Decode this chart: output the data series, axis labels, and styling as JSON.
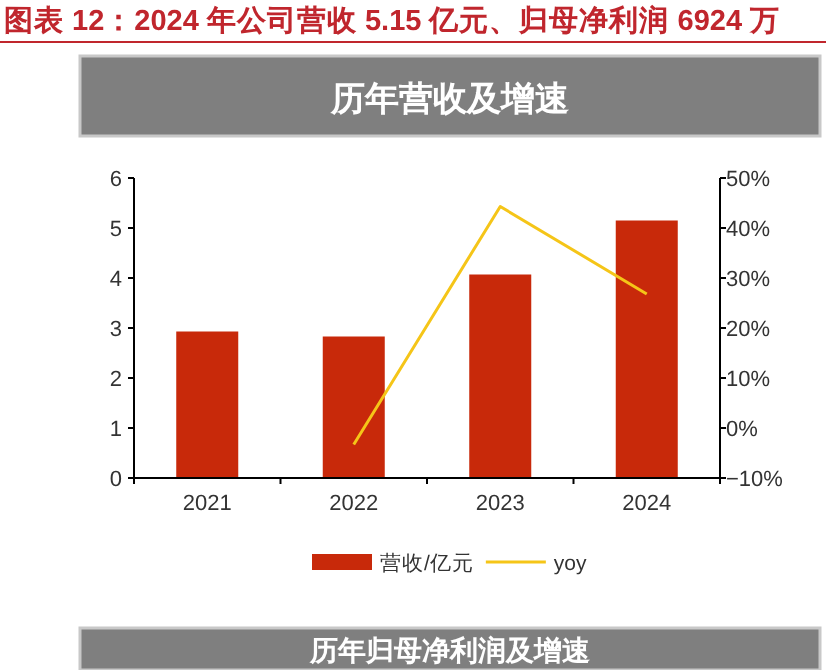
{
  "chart_data": {
    "type": "bar",
    "title": "图表 12：2024 年公司营收 5.15 亿元、归母净利润 6924 万",
    "subtitle": "历年营收及增速",
    "categories": [
      "2021",
      "2022",
      "2023",
      "2024"
    ],
    "series": [
      {
        "name": "营收/亿元",
        "color": "#c8290a",
        "values": [
          2.93,
          2.83,
          4.07,
          5.15
        ]
      },
      {
        "name": "yoy",
        "type": "line",
        "axis": "y2",
        "color": "#f5c518",
        "values": [
          null,
          -3.3,
          44.3,
          26.8
        ]
      }
    ],
    "ylim": [
      0,
      6
    ],
    "yticks": [
      0,
      1,
      2,
      3,
      4,
      5,
      6
    ],
    "y2lim": [
      -10,
      50
    ],
    "y2ticks": [
      {
        "value": -10,
        "label": "−10%"
      },
      {
        "value": 0,
        "label": "0%"
      },
      {
        "value": 10,
        "label": "10%"
      },
      {
        "value": 20,
        "label": "20%"
      },
      {
        "value": 30,
        "label": "30%"
      },
      {
        "value": 40,
        "label": "40%"
      },
      {
        "value": 50,
        "label": "50%"
      }
    ],
    "legend": "bottom",
    "grid": false,
    "annotations": [
      "历年归母净利润及增速"
    ]
  }
}
